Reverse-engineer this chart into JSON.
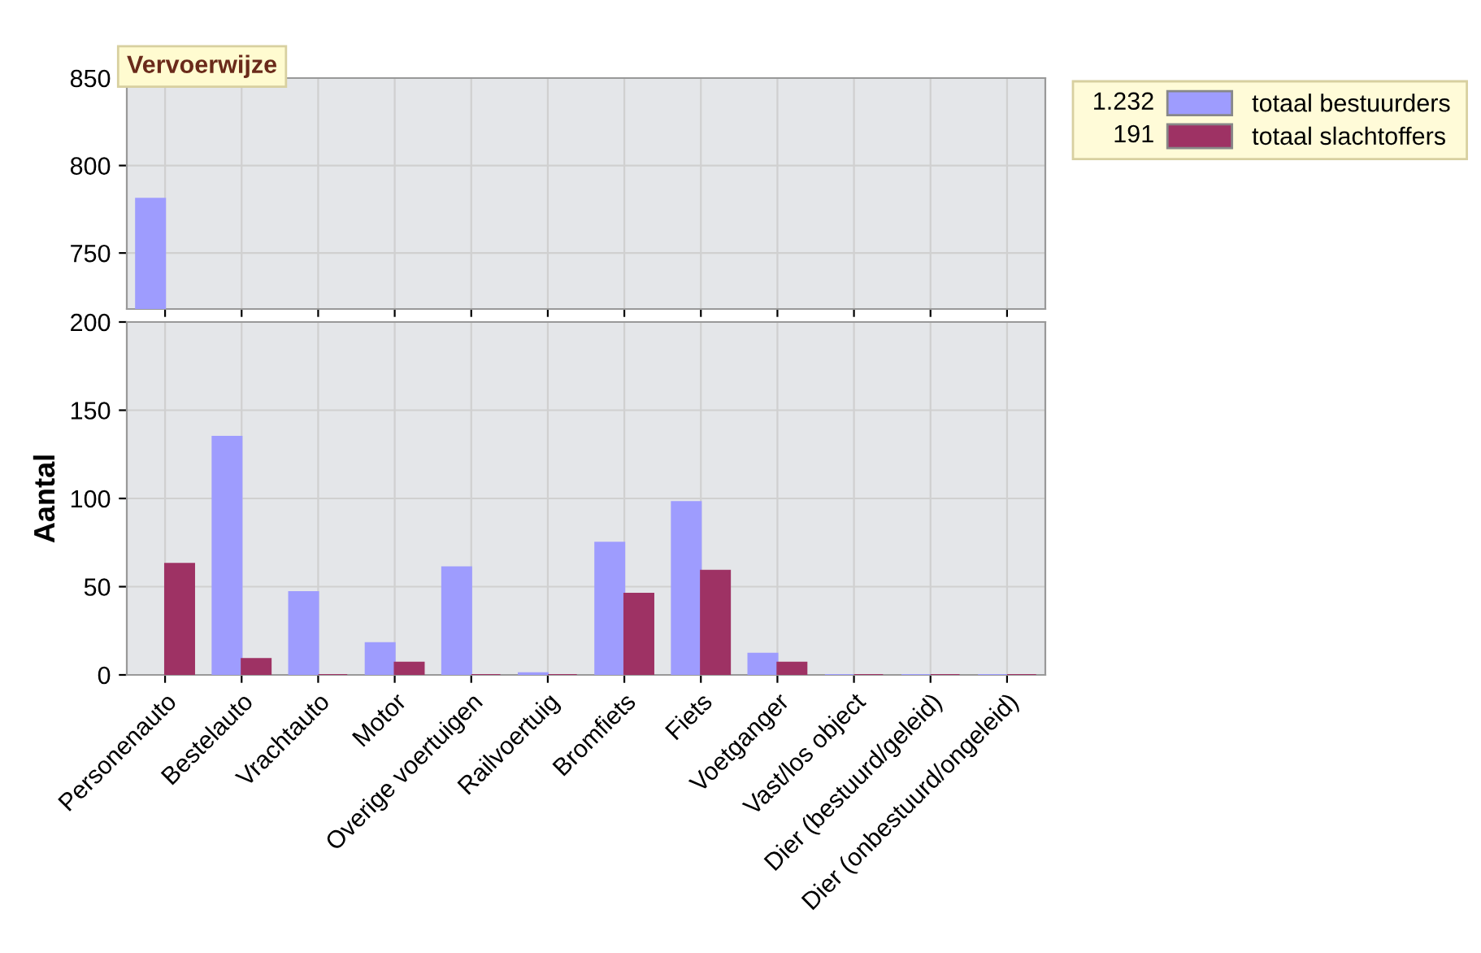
{
  "chart_data": [
    {
      "type": "bar",
      "title": "Vervoerwijze",
      "categories": [
        null,
        null,
        null,
        null,
        null,
        null,
        null,
        null,
        null,
        null,
        null,
        null
      ],
      "series": [
        {
          "color": "#9e9cfe",
          "values": [
            781,
            null,
            null,
            null,
            null,
            null,
            null,
            null,
            null,
            null,
            null,
            null
          ]
        },
        {
          "color": "#9e3264",
          "values": [
            null,
            null,
            null,
            null,
            null,
            null,
            null,
            null,
            null,
            null,
            null,
            null
          ]
        }
      ],
      "ylim": [
        718,
        850
      ],
      "yticks": [
        750,
        800,
        850
      ],
      "grid": true,
      "tick_labels": "y"
    },
    {
      "type": "bar",
      "ylabel": "Aantal",
      "categories": [
        "Personenauto",
        "Bestelauto",
        "Vrachtauto",
        "Motor",
        "Overige voertuigen",
        "Railvoertuig",
        "Bromfiets",
        "Fiets",
        "Voetganger",
        "Vast/los object",
        "Dier (bestuurd/geleid)",
        "Dier (onbestuurd/ongeleid)"
      ],
      "series": [
        {
          "name": "totaal bestuurders",
          "color": "#9e9cfe",
          "values": [
            null,
            135,
            47,
            18,
            61,
            1,
            75,
            98,
            12,
            0,
            0,
            0
          ]
        },
        {
          "name": "totaal slachtoffers",
          "color": "#9e3264",
          "values": [
            63,
            9,
            0,
            7,
            0,
            0,
            46,
            59,
            7,
            0,
            0,
            0
          ]
        }
      ],
      "ylim": [
        0,
        200
      ],
      "yticks": [
        0,
        50,
        100,
        150,
        200
      ],
      "grid": true,
      "legend": "top right",
      "annotations": [
        "1.232",
        "191"
      ]
    }
  ]
}
